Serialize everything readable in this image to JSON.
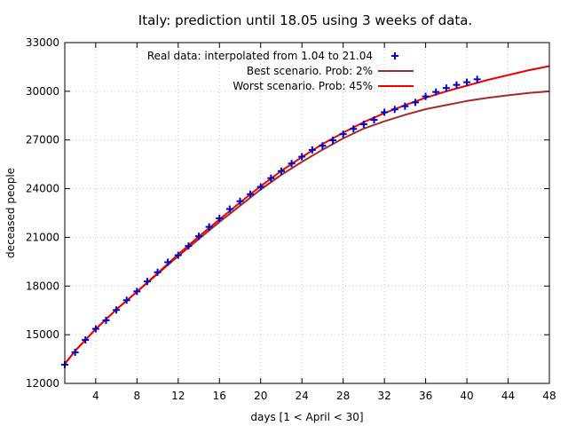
{
  "chart_data": {
    "type": "line",
    "title": "Italy: prediction until 18.05 using 3 weeks of data.",
    "xlabel": "days [1 < April < 30]",
    "ylabel": "deceased people",
    "xlim": [
      1,
      48
    ],
    "ylim": [
      12000,
      33000
    ],
    "xticks": [
      4,
      8,
      12,
      16,
      20,
      24,
      28,
      32,
      36,
      40,
      44,
      48
    ],
    "yticks": [
      12000,
      15000,
      18000,
      21000,
      24000,
      27000,
      30000,
      33000
    ],
    "grid": true,
    "legend_position": "top-right",
    "series": [
      {
        "name": "Real data: interpolated from 1.04 to 21.04",
        "kind": "points",
        "marker": "+",
        "color": "#0000cc",
        "x": [
          1,
          2,
          3,
          4,
          5,
          6,
          7,
          8,
          9,
          10,
          11,
          12,
          13,
          14,
          15,
          16,
          17,
          18,
          19,
          20,
          21,
          22,
          23,
          24,
          25,
          26,
          27,
          28,
          29,
          30,
          31,
          32,
          33,
          34,
          35,
          36,
          37,
          38,
          39,
          40,
          41
        ],
        "y": [
          13155,
          13915,
          14681,
          15362,
          15887,
          16523,
          17127,
          17669,
          18279,
          18849,
          19468,
          19899,
          20465,
          21067,
          21645,
          22170,
          22745,
          23227,
          23660,
          24114,
          24648,
          25085,
          25549,
          25969,
          26384,
          26644,
          26977,
          27359,
          27682,
          27967,
          28236,
          28710,
          28884,
          29079,
          29315,
          29684,
          29958,
          30201,
          30395,
          30560,
          30739
        ]
      },
      {
        "name": "Best scenario. Prob: 2%",
        "kind": "line",
        "color": "#a52a2a",
        "x": [
          1,
          2,
          4,
          6,
          8,
          10,
          12,
          14,
          16,
          18,
          20,
          22,
          24,
          26,
          28,
          30,
          32,
          34,
          36,
          38,
          40,
          42,
          44,
          46,
          48
        ],
        "y": [
          13200,
          14000,
          15350,
          16550,
          17650,
          18750,
          19850,
          20900,
          21950,
          22950,
          23950,
          24850,
          25650,
          26400,
          27100,
          27700,
          28150,
          28550,
          28900,
          29150,
          29400,
          29600,
          29750,
          29900,
          30000
        ]
      },
      {
        "name": "Worst scenario. Prob: 45%",
        "kind": "line",
        "color": "#ee0000",
        "x": [
          1,
          2,
          4,
          6,
          8,
          10,
          12,
          14,
          16,
          18,
          20,
          22,
          24,
          26,
          28,
          30,
          32,
          34,
          36,
          38,
          40,
          42,
          44,
          46,
          48
        ],
        "y": [
          13200,
          14000,
          15350,
          16550,
          17650,
          18800,
          19950,
          21050,
          22100,
          23150,
          24150,
          25100,
          25950,
          26750,
          27450,
          28100,
          28650,
          29150,
          29600,
          30000,
          30350,
          30700,
          31000,
          31300,
          31550
        ]
      }
    ]
  }
}
